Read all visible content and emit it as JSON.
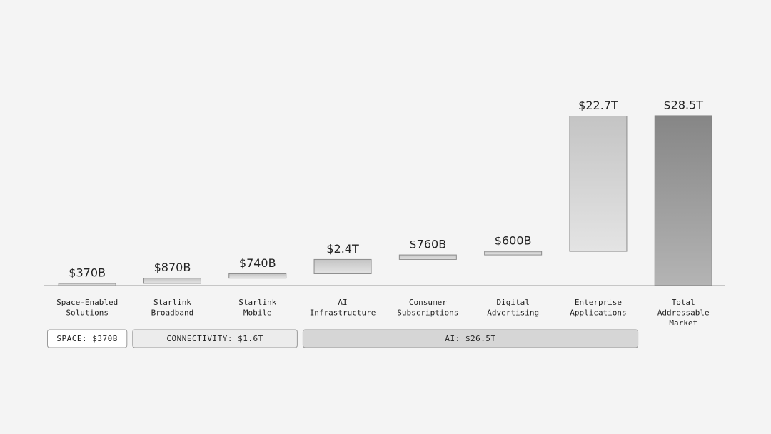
{
  "chart_data": {
    "type": "waterfall",
    "categories": [
      "Space-Enabled\nSolutions",
      "Starlink\nBroadband",
      "Starlink\nMobile",
      "AI\nInfrastructure",
      "Consumer\nSubscriptions",
      "Digital\nAdvertising",
      "Enterprise\nApplications",
      "Total\nAddressable\nMarket"
    ],
    "values": [
      370,
      870,
      740,
      2400,
      760,
      600,
      22700,
      28500
    ],
    "value_labels": [
      "$370B",
      "$870B",
      "$740B",
      "$2.4T",
      "$760B",
      "$600B",
      "$22.7T",
      "$28.5T"
    ],
    "color": "#c4c4c4",
    "total_color": "#868686",
    "show_total": true,
    "groups": [
      {
        "label": "SPACE: $370B",
        "size": 1,
        "color": "#ffffff"
      },
      {
        "label": "CONNECTIVITY: $1.6T",
        "size": 2,
        "color": "#ececec"
      },
      {
        "label": "AI: $26.5T",
        "size": 4,
        "color": "#d6d6d6"
      }
    ]
  }
}
